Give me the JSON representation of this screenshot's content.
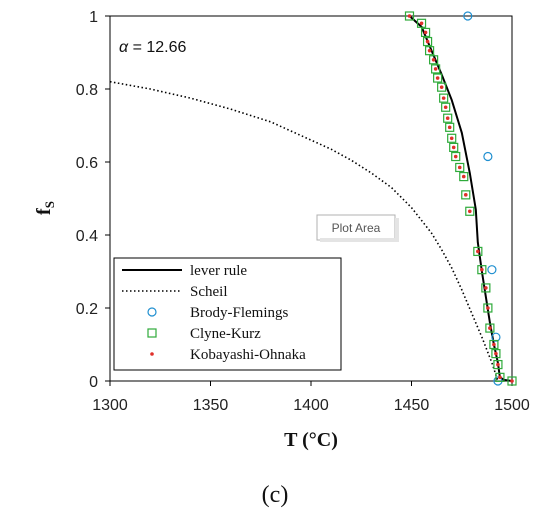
{
  "chart_data": {
    "type": "line",
    "title": "",
    "xlabel": "T (°C)",
    "ylabel_main": "f",
    "ylabel_sub": "S",
    "xlim": [
      1300,
      1500
    ],
    "ylim": [
      0,
      1
    ],
    "xticks": [
      "1300",
      "1350",
      "1400",
      "1450",
      "1500"
    ],
    "yticks": [
      "0",
      "0.2",
      "0.4",
      "0.6",
      "0.8",
      "1"
    ],
    "annotation_symbol": "α",
    "annotation_text": " = 12.66",
    "plot_area_tag": "Plot Area",
    "caption": "(c)",
    "legend_position": "bottom-left",
    "series": [
      {
        "name": "lever rule",
        "style": "solid",
        "color": "#000000",
        "x": [
          1449,
          1455,
          1460,
          1465,
          1470,
          1475,
          1479,
          1482,
          1483,
          1485,
          1487,
          1489,
          1491,
          1493,
          1494,
          1496,
          1500
        ],
        "y": [
          1.0,
          0.97,
          0.905,
          0.84,
          0.77,
          0.68,
          0.57,
          0.47,
          0.38,
          0.3,
          0.23,
          0.16,
          0.1,
          0.05,
          0.01,
          0.003,
          0.0
        ]
      },
      {
        "name": "Scheil",
        "style": "dotted",
        "color": "#000000",
        "x": [
          1300,
          1320,
          1340,
          1360,
          1380,
          1400,
          1410,
          1420,
          1430,
          1440,
          1450,
          1460,
          1465,
          1470,
          1475,
          1480,
          1485,
          1490,
          1493
        ],
        "y": [
          0.82,
          0.8,
          0.775,
          0.745,
          0.71,
          0.66,
          0.635,
          0.605,
          0.57,
          0.53,
          0.475,
          0.405,
          0.36,
          0.31,
          0.25,
          0.185,
          0.12,
          0.05,
          0.0
        ]
      },
      {
        "name": "Brody-Flemings",
        "style": "marker-circle",
        "color": "#1f8fd0",
        "x": [
          1478,
          1488,
          1490,
          1492,
          1493
        ],
        "y": [
          1.0,
          0.615,
          0.305,
          0.12,
          0.0
        ]
      },
      {
        "name": "Clyne-Kurz",
        "style": "marker-square",
        "color": "#2eaa3a",
        "x": [
          1449,
          1455,
          1457,
          1458,
          1459,
          1461,
          1462,
          1463,
          1465,
          1466,
          1467,
          1468,
          1469,
          1470,
          1471,
          1472,
          1474,
          1476,
          1477,
          1479,
          1483,
          1485,
          1487,
          1488,
          1489,
          1491,
          1492,
          1493,
          1494,
          1500
        ],
        "y": [
          1.0,
          0.98,
          0.955,
          0.93,
          0.905,
          0.88,
          0.855,
          0.83,
          0.805,
          0.775,
          0.75,
          0.72,
          0.695,
          0.665,
          0.64,
          0.615,
          0.585,
          0.56,
          0.51,
          0.465,
          0.355,
          0.305,
          0.255,
          0.2,
          0.145,
          0.1,
          0.075,
          0.045,
          0.01,
          0.0
        ]
      },
      {
        "name": "Kobayashi-Ohnaka",
        "style": "marker-dot",
        "color": "#e0302a",
        "x": [
          1449,
          1455,
          1457,
          1458,
          1459,
          1461,
          1462,
          1463,
          1465,
          1466,
          1467,
          1468,
          1469,
          1470,
          1471,
          1472,
          1474,
          1476,
          1477,
          1479,
          1483,
          1485,
          1487,
          1488,
          1489,
          1491,
          1492,
          1493,
          1494,
          1500
        ],
        "y": [
          1.0,
          0.98,
          0.955,
          0.93,
          0.905,
          0.88,
          0.855,
          0.83,
          0.805,
          0.775,
          0.75,
          0.72,
          0.695,
          0.665,
          0.64,
          0.615,
          0.585,
          0.56,
          0.51,
          0.465,
          0.355,
          0.305,
          0.255,
          0.2,
          0.145,
          0.1,
          0.075,
          0.045,
          0.01,
          0.0
        ]
      }
    ]
  }
}
